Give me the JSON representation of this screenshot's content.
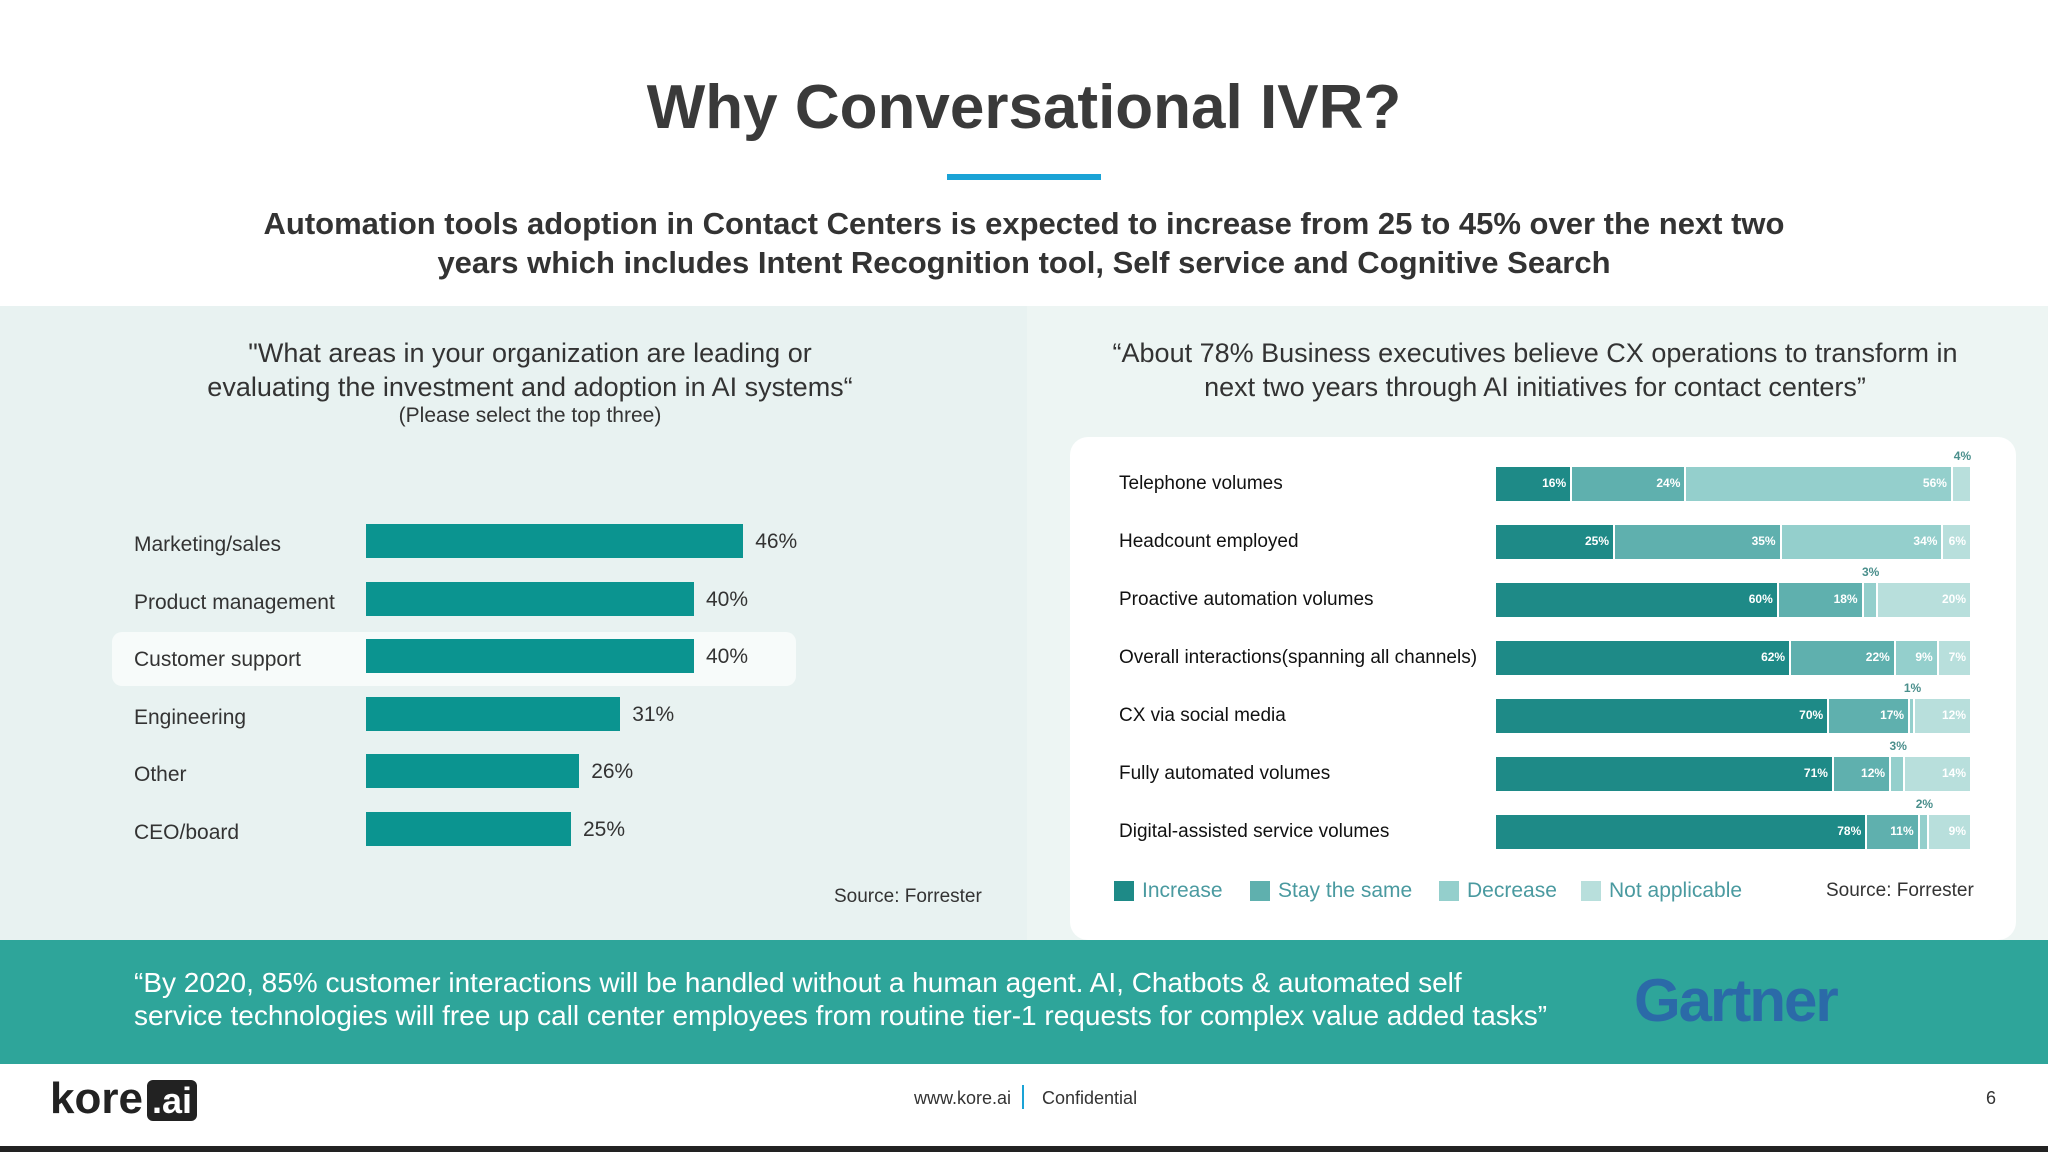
{
  "slide": {
    "title": "Why Conversational IVR?",
    "subtitle_line1": "Automation tools adoption in Contact Centers is expected to increase from 25 to 45% over the next two",
    "subtitle_line2": "years which includes Intent Recognition tool, Self service and Cognitive Search"
  },
  "left": {
    "question_line1": "\"What areas in your organization are leading or",
    "question_line2": "evaluating the investment and adoption in AI systems“",
    "note": "(Please select the top three)",
    "source": "Source: Forrester"
  },
  "right": {
    "question_line1": "“About 78% Business executives believe CX operations to transform in",
    "question_line2": "next two years through AI initiatives for contact centers”",
    "source": "Source: Forrester"
  },
  "quote": {
    "line1": "“By 2020, 85% customer interactions will be handled without a human agent.  AI, Chatbots & automated self",
    "line2": "service technologies will free up call center employees from routine tier-1 requests for complex value added tasks”",
    "brand": "Gartner"
  },
  "footer": {
    "logo_text": "kore",
    "logo_ai": ".ai",
    "site": "www.kore.ai",
    "confidential": "Confidential",
    "page": "6"
  },
  "colors": {
    "accent_rule": "#1aa3d6",
    "bar": "#0b9490",
    "band": "#2ea59a",
    "increase": "#1e8a87",
    "stay": "#5fb0ae",
    "decrease": "#94cfcc",
    "not_applicable": "#b8dfdc",
    "gartner": "#2b6aa8"
  },
  "chart_data": [
    {
      "type": "bar",
      "orientation": "horizontal",
      "categories": [
        "Marketing/sales",
        "Product management",
        "Customer support",
        "Engineering",
        "Other",
        "CEO/board"
      ],
      "values": [
        46,
        40,
        40,
        31,
        26,
        25
      ],
      "value_labels": [
        "46%",
        "40%",
        "40%",
        "31%",
        "26%",
        "25%"
      ],
      "highlighted": "Customer support",
      "xlim": [
        0,
        100
      ],
      "grid": false
    },
    {
      "type": "bar",
      "orientation": "horizontal",
      "stacked": true,
      "categories": [
        "Telephone volumes",
        "Headcount employed",
        "Proactive automation volumes",
        "Overall interactions(spanning all channels)",
        "CX via social media",
        "Fully automated volumes",
        "Digital-assisted service volumes"
      ],
      "series": [
        {
          "name": "Increase",
          "values": [
            16,
            25,
            60,
            62,
            70,
            71,
            78
          ]
        },
        {
          "name": "Stay the same",
          "values": [
            24,
            35,
            18,
            22,
            17,
            12,
            11
          ]
        },
        {
          "name": "Decrease",
          "values": [
            56,
            34,
            3,
            9,
            1,
            3,
            2
          ]
        },
        {
          "name": "Not applicable",
          "values": [
            4,
            6,
            20,
            7,
            12,
            14,
            9
          ]
        }
      ],
      "legend_position": "bottom",
      "grid": false
    }
  ]
}
